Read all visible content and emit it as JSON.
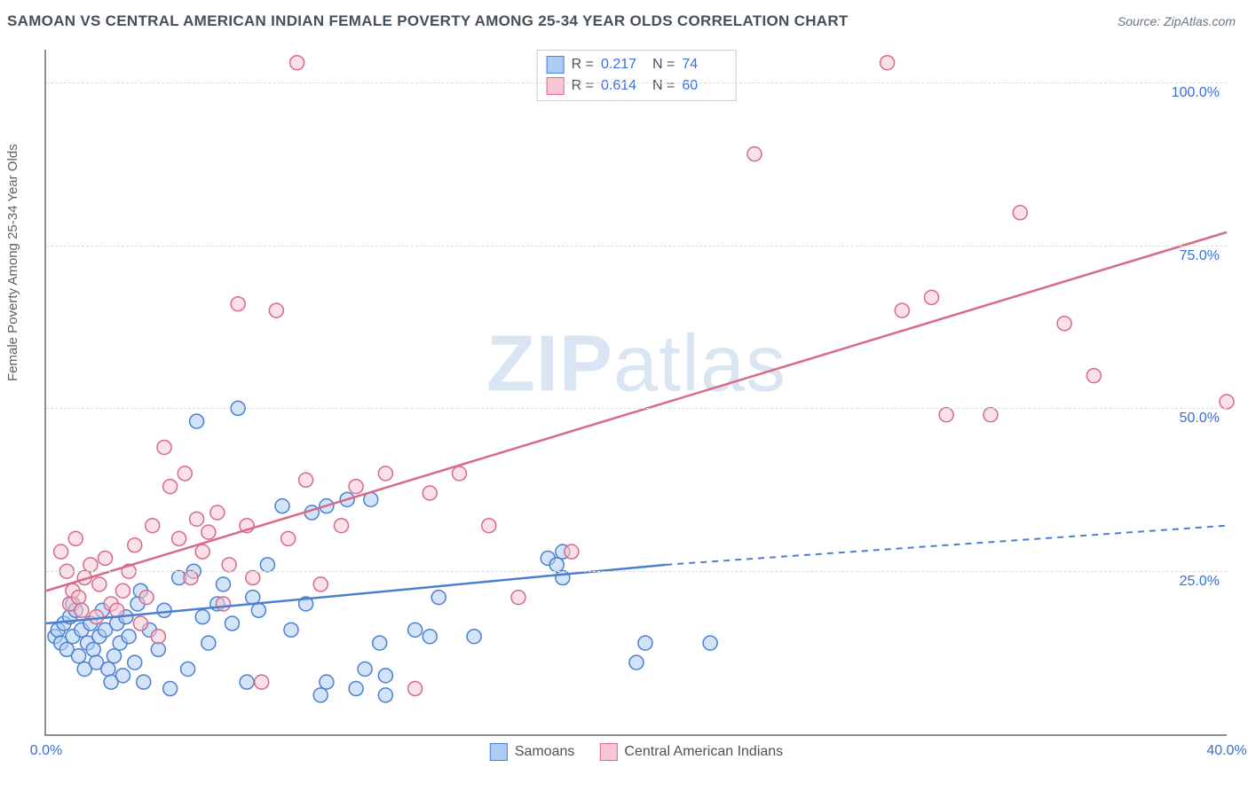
{
  "header": {
    "title": "SAMOAN VS CENTRAL AMERICAN INDIAN FEMALE POVERTY AMONG 25-34 YEAR OLDS CORRELATION CHART",
    "source": "Source: ZipAtlas.com"
  },
  "watermark": {
    "zip": "ZIP",
    "atlas": "atlas"
  },
  "chart": {
    "type": "scatter",
    "y_label": "Female Poverty Among 25-34 Year Olds",
    "xlim": [
      0,
      40
    ],
    "ylim": [
      0,
      105
    ],
    "x_ticks": [
      {
        "v": 0,
        "label": "0.0%"
      },
      {
        "v": 40,
        "label": "40.0%"
      }
    ],
    "y_ticks": [
      {
        "v": 25,
        "label": "25.0%"
      },
      {
        "v": 50,
        "label": "50.0%"
      },
      {
        "v": 75,
        "label": "75.0%"
      },
      {
        "v": 100,
        "label": "100.0%"
      }
    ],
    "grid_color": "#d9dde1",
    "background_color": "#ffffff",
    "marker_radius": 8,
    "marker_opacity": 0.55,
    "series": [
      {
        "name": "Samoans",
        "color_fill": "#aecdf2",
        "color_stroke": "#4b7fd1",
        "R": "0.217",
        "N": "74",
        "trend": {
          "x1": 0,
          "y1": 17,
          "x2": 21,
          "y2": 26,
          "x2_ext": 40,
          "y2_ext": 32,
          "width": 2.5
        },
        "points": [
          [
            0.3,
            15
          ],
          [
            0.4,
            16
          ],
          [
            0.5,
            14
          ],
          [
            0.6,
            17
          ],
          [
            0.7,
            13
          ],
          [
            0.8,
            18
          ],
          [
            0.9,
            20
          ],
          [
            0.9,
            15
          ],
          [
            1.0,
            19
          ],
          [
            1.1,
            12
          ],
          [
            1.2,
            16
          ],
          [
            1.3,
            10
          ],
          [
            1.4,
            14
          ],
          [
            1.5,
            17
          ],
          [
            1.6,
            13
          ],
          [
            1.7,
            11
          ],
          [
            1.8,
            15
          ],
          [
            1.9,
            19
          ],
          [
            2.0,
            16
          ],
          [
            2.1,
            10
          ],
          [
            2.2,
            8
          ],
          [
            2.3,
            12
          ],
          [
            2.4,
            17
          ],
          [
            2.5,
            14
          ],
          [
            2.6,
            9
          ],
          [
            2.7,
            18
          ],
          [
            2.8,
            15
          ],
          [
            3.0,
            11
          ],
          [
            3.1,
            20
          ],
          [
            3.2,
            22
          ],
          [
            3.3,
            8
          ],
          [
            3.5,
            16
          ],
          [
            3.8,
            13
          ],
          [
            4.0,
            19
          ],
          [
            4.2,
            7
          ],
          [
            4.5,
            24
          ],
          [
            4.8,
            10
          ],
          [
            5.0,
            25
          ],
          [
            5.1,
            48
          ],
          [
            5.3,
            18
          ],
          [
            5.5,
            14
          ],
          [
            5.8,
            20
          ],
          [
            6.0,
            23
          ],
          [
            6.3,
            17
          ],
          [
            6.5,
            50
          ],
          [
            6.8,
            8
          ],
          [
            7.0,
            21
          ],
          [
            7.2,
            19
          ],
          [
            7.5,
            26
          ],
          [
            8.0,
            35
          ],
          [
            8.3,
            16
          ],
          [
            8.8,
            20
          ],
          [
            9.0,
            34
          ],
          [
            9.3,
            6
          ],
          [
            9.5,
            35
          ],
          [
            9.5,
            8
          ],
          [
            10.2,
            36
          ],
          [
            10.5,
            7
          ],
          [
            10.8,
            10
          ],
          [
            11.0,
            36
          ],
          [
            11.3,
            14
          ],
          [
            11.5,
            6
          ],
          [
            11.5,
            9
          ],
          [
            12.5,
            16
          ],
          [
            13.0,
            15
          ],
          [
            13.3,
            21
          ],
          [
            14.5,
            15
          ],
          [
            17.0,
            27
          ],
          [
            17.3,
            26
          ],
          [
            17.5,
            24
          ],
          [
            17.5,
            28
          ],
          [
            20.0,
            11
          ],
          [
            20.3,
            14
          ],
          [
            22.5,
            14
          ]
        ]
      },
      {
        "name": "Central American Indians",
        "color_fill": "#f6c7d3",
        "color_stroke": "#d76a89",
        "R": "0.614",
        "N": "60",
        "trend": {
          "x1": 0,
          "y1": 22,
          "x2": 40,
          "y2": 77,
          "width": 2.5
        },
        "points": [
          [
            0.5,
            28
          ],
          [
            0.7,
            25
          ],
          [
            0.8,
            20
          ],
          [
            0.9,
            22
          ],
          [
            1.0,
            30
          ],
          [
            1.1,
            21
          ],
          [
            1.2,
            19
          ],
          [
            1.3,
            24
          ],
          [
            1.5,
            26
          ],
          [
            1.7,
            18
          ],
          [
            1.8,
            23
          ],
          [
            2.0,
            27
          ],
          [
            2.2,
            20
          ],
          [
            2.4,
            19
          ],
          [
            2.6,
            22
          ],
          [
            2.8,
            25
          ],
          [
            3.0,
            29
          ],
          [
            3.2,
            17
          ],
          [
            3.4,
            21
          ],
          [
            3.6,
            32
          ],
          [
            3.8,
            15
          ],
          [
            4.0,
            44
          ],
          [
            4.2,
            38
          ],
          [
            4.5,
            30
          ],
          [
            4.7,
            40
          ],
          [
            4.9,
            24
          ],
          [
            5.1,
            33
          ],
          [
            5.3,
            28
          ],
          [
            5.5,
            31
          ],
          [
            5.8,
            34
          ],
          [
            6.0,
            20
          ],
          [
            6.2,
            26
          ],
          [
            6.5,
            66
          ],
          [
            6.8,
            32
          ],
          [
            7.0,
            24
          ],
          [
            7.3,
            8
          ],
          [
            7.8,
            65
          ],
          [
            8.2,
            30
          ],
          [
            8.5,
            103
          ],
          [
            8.8,
            39
          ],
          [
            9.3,
            23
          ],
          [
            10.0,
            32
          ],
          [
            10.5,
            38
          ],
          [
            11.5,
            40
          ],
          [
            12.5,
            7
          ],
          [
            13.0,
            37
          ],
          [
            14.0,
            40
          ],
          [
            15.0,
            32
          ],
          [
            16.0,
            21
          ],
          [
            17.8,
            28
          ],
          [
            24.0,
            89
          ],
          [
            28.5,
            103
          ],
          [
            29.0,
            65
          ],
          [
            30.0,
            67
          ],
          [
            30.5,
            49
          ],
          [
            32.0,
            49
          ],
          [
            33.0,
            80
          ],
          [
            34.5,
            63
          ],
          [
            35.5,
            55
          ],
          [
            40.0,
            51
          ]
        ]
      }
    ],
    "legend_top": {
      "R_label": "R =",
      "N_label": "N ="
    },
    "legend_bottom_labels": [
      "Samoans",
      "Central American Indians"
    ]
  }
}
